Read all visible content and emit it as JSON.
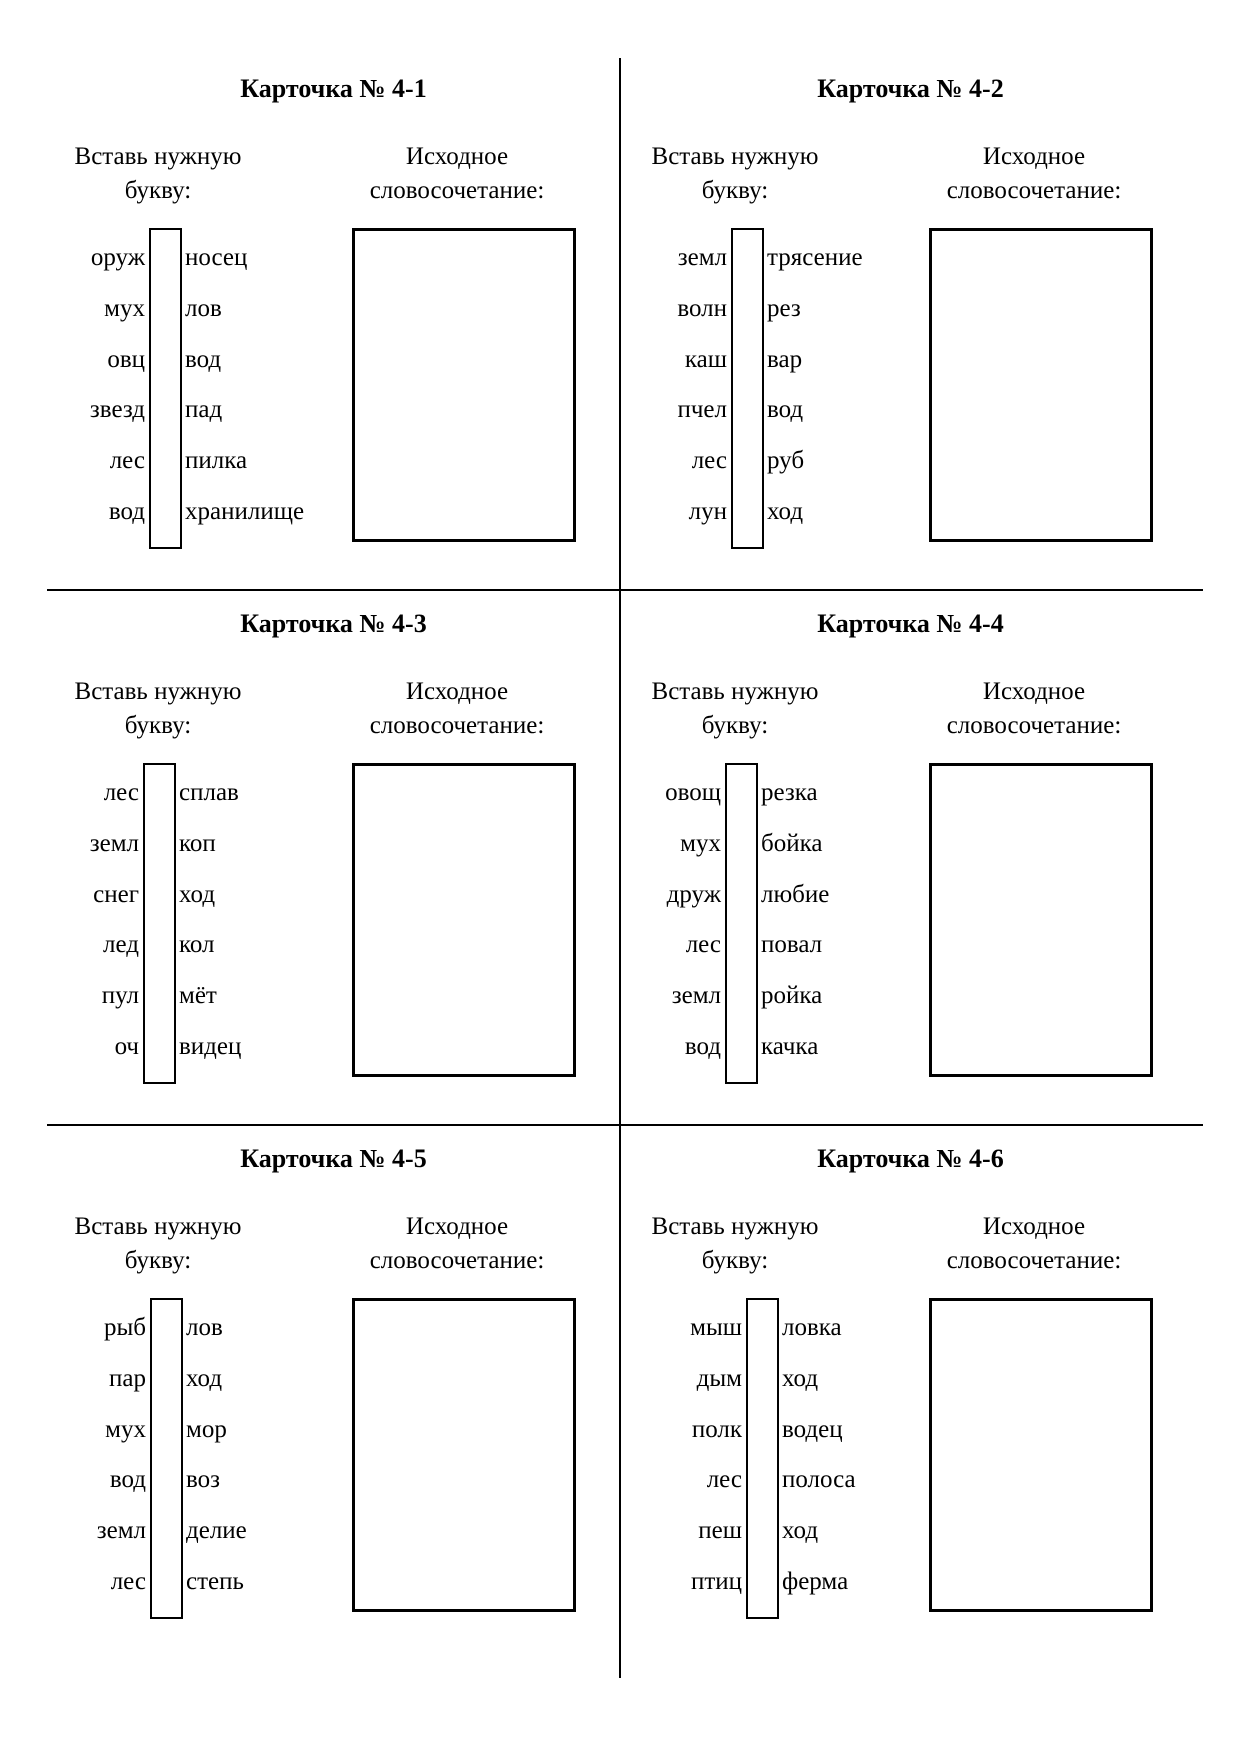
{
  "labels": {
    "insert_letter": "Вставь нужную",
    "insert_letter_2": "букву:",
    "source_phrase": "Исходное",
    "source_phrase_2": "словосочетание:"
  },
  "cards": [
    {
      "title": "Карточка № 4-1",
      "rows": [
        [
          "оруж",
          "носец"
        ],
        [
          "мух",
          "лов"
        ],
        [
          "овц",
          "вод"
        ],
        [
          "звезд",
          "пад"
        ],
        [
          "лес",
          "пилка"
        ],
        [
          "вод",
          "хранилище"
        ]
      ]
    },
    {
      "title": "Карточка № 4-2",
      "rows": [
        [
          "земл",
          "трясение"
        ],
        [
          "волн",
          "рез"
        ],
        [
          "каш",
          "вар"
        ],
        [
          "пчел",
          "вод"
        ],
        [
          "лес",
          "руб"
        ],
        [
          "лун",
          "ход"
        ]
      ]
    },
    {
      "title": "Карточка № 4-3",
      "rows": [
        [
          "лес",
          "сплав"
        ],
        [
          "земл",
          "коп"
        ],
        [
          "снег",
          "ход"
        ],
        [
          "лед",
          "кол"
        ],
        [
          "пул",
          "мёт"
        ],
        [
          "оч",
          "видец"
        ]
      ]
    },
    {
      "title": "Карточка № 4-4",
      "rows": [
        [
          "овощ",
          "резка"
        ],
        [
          "мух",
          "бойка"
        ],
        [
          "друж",
          "любие"
        ],
        [
          "лес",
          "повал"
        ],
        [
          "земл",
          "ройка"
        ],
        [
          "вод",
          "качка"
        ]
      ]
    },
    {
      "title": "Карточка № 4-5",
      "rows": [
        [
          "рыб",
          "лов"
        ],
        [
          "пар",
          "ход"
        ],
        [
          "мух",
          "мор"
        ],
        [
          "вод",
          "воз"
        ],
        [
          "земл",
          "делие"
        ],
        [
          "лес",
          "степь"
        ]
      ]
    },
    {
      "title": "Карточка № 4-6",
      "rows": [
        [
          "мыш",
          "ловка"
        ],
        [
          "дым",
          "ход"
        ],
        [
          "полк",
          "водец"
        ],
        [
          "лес",
          "полоса"
        ],
        [
          "пеш",
          "ход"
        ],
        [
          "птиц",
          "ферма"
        ]
      ]
    }
  ]
}
